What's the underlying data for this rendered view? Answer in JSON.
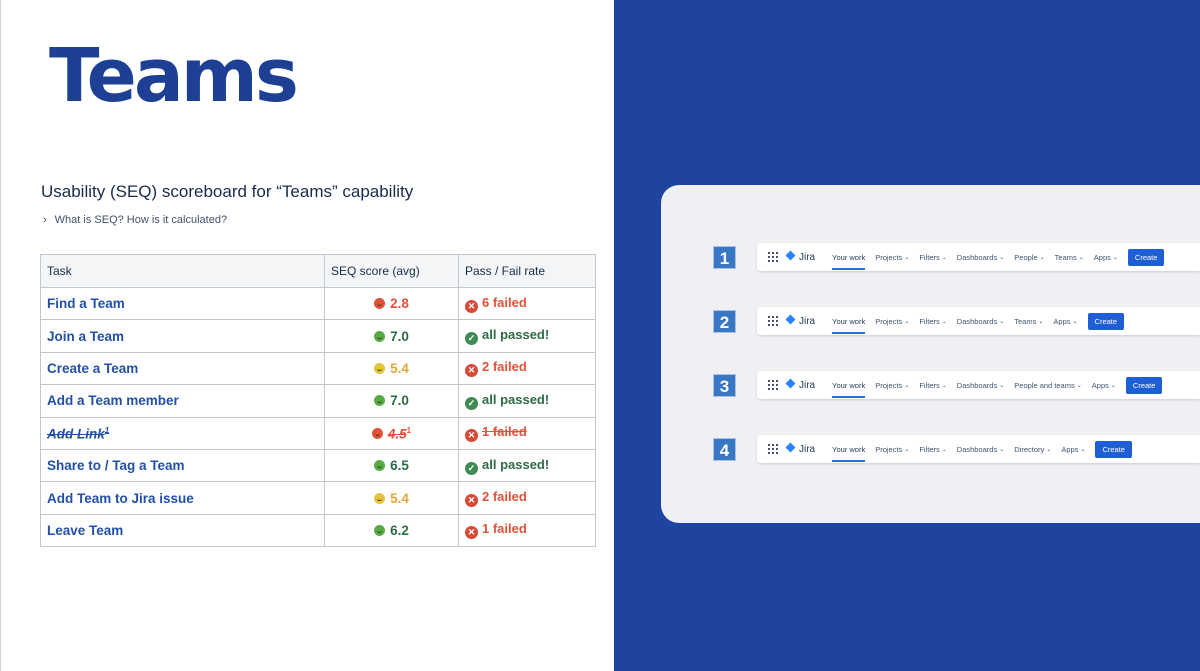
{
  "title": "Teams",
  "subtitle": "Usability (SEQ) scoreboard for “Teams” capability",
  "expand_label": "What is SEQ? How is it calculated?",
  "table": {
    "headers": [
      "Task",
      "SEQ score (avg)",
      "Pass / Fail rate"
    ],
    "rows": [
      {
        "task": "Find a Team",
        "score": "2.8",
        "rate": "6 failed"
      },
      {
        "task": "Join a Team",
        "score": "7.0",
        "rate": "all passed!"
      },
      {
        "task": "Create a Team",
        "score": "5.4",
        "rate": "2 failed"
      },
      {
        "task": "Add a Team member",
        "score": "7.0",
        "rate": "all passed!"
      },
      {
        "task": "Add Link",
        "task_sup": "1",
        "score": "4.5",
        "score_sup": "1",
        "rate": "1 failed"
      },
      {
        "task": "Share to / Tag a Team",
        "score": "6.5",
        "rate": "all passed!"
      },
      {
        "task": "Add Team to Jira issue",
        "score": "5.4",
        "rate": "2 failed"
      },
      {
        "task": "Leave Team",
        "score": "6.2",
        "rate": "1 failed"
      }
    ]
  },
  "variants": [
    {
      "number": "1",
      "app": "Jira",
      "items": [
        "Your work",
        "Projects",
        "Filters",
        "Dashboards",
        "People",
        "Teams",
        "Apps"
      ],
      "create": "Create"
    },
    {
      "number": "2",
      "app": "Jira",
      "items": [
        "Your work",
        "Projects",
        "Filters",
        "Dashboards",
        "Teams",
        "Apps"
      ],
      "create": "Create"
    },
    {
      "number": "3",
      "app": "Jira",
      "items": [
        "Your work",
        "Projects",
        "Filters",
        "Dashboards",
        "People and teams",
        "Apps"
      ],
      "create": "Create"
    },
    {
      "number": "4",
      "app": "Jira",
      "items": [
        "Your work",
        "Projects",
        "Filters",
        "Dashboards",
        "Directory",
        "Apps"
      ],
      "create": "Create"
    }
  ],
  "colors": {
    "brand_blue": "#1f44a0",
    "title_blue": "#1d3f94",
    "fail": "#e0533a",
    "pass": "#2e6b45",
    "warn": "#e2a63b"
  }
}
